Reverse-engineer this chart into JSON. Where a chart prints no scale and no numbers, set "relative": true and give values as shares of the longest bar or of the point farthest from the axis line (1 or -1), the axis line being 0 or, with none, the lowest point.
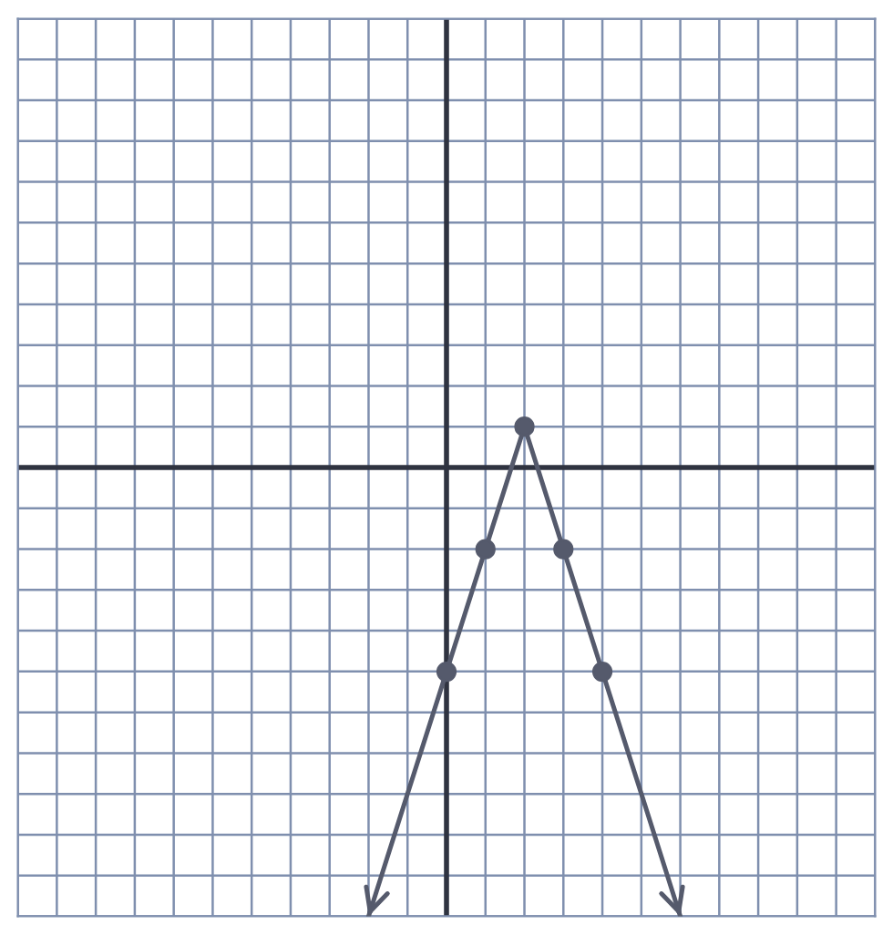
{
  "chart_data": {
    "type": "line",
    "relative": true,
    "grid": true,
    "tick_labels": false,
    "marker": "circle",
    "line_style": "solid",
    "categories": [
      null,
      null,
      null,
      null,
      null,
      null,
      null,
      null,
      null,
      null,
      null,
      null,
      null,
      null,
      null,
      null,
      null,
      null,
      null,
      null,
      null,
      null,
      null
    ],
    "series": [
      {
        "color": "#555a6c",
        "values": [
          null,
          null,
          null,
          null,
          null,
          null,
          null,
          null,
          null,
          -1,
          -0.727,
          -0.455,
          -0.182,
          0.091,
          -0.182,
          -0.455,
          -0.727,
          -1,
          null,
          null,
          null,
          null,
          null
        ]
      }
    ]
  }
}
